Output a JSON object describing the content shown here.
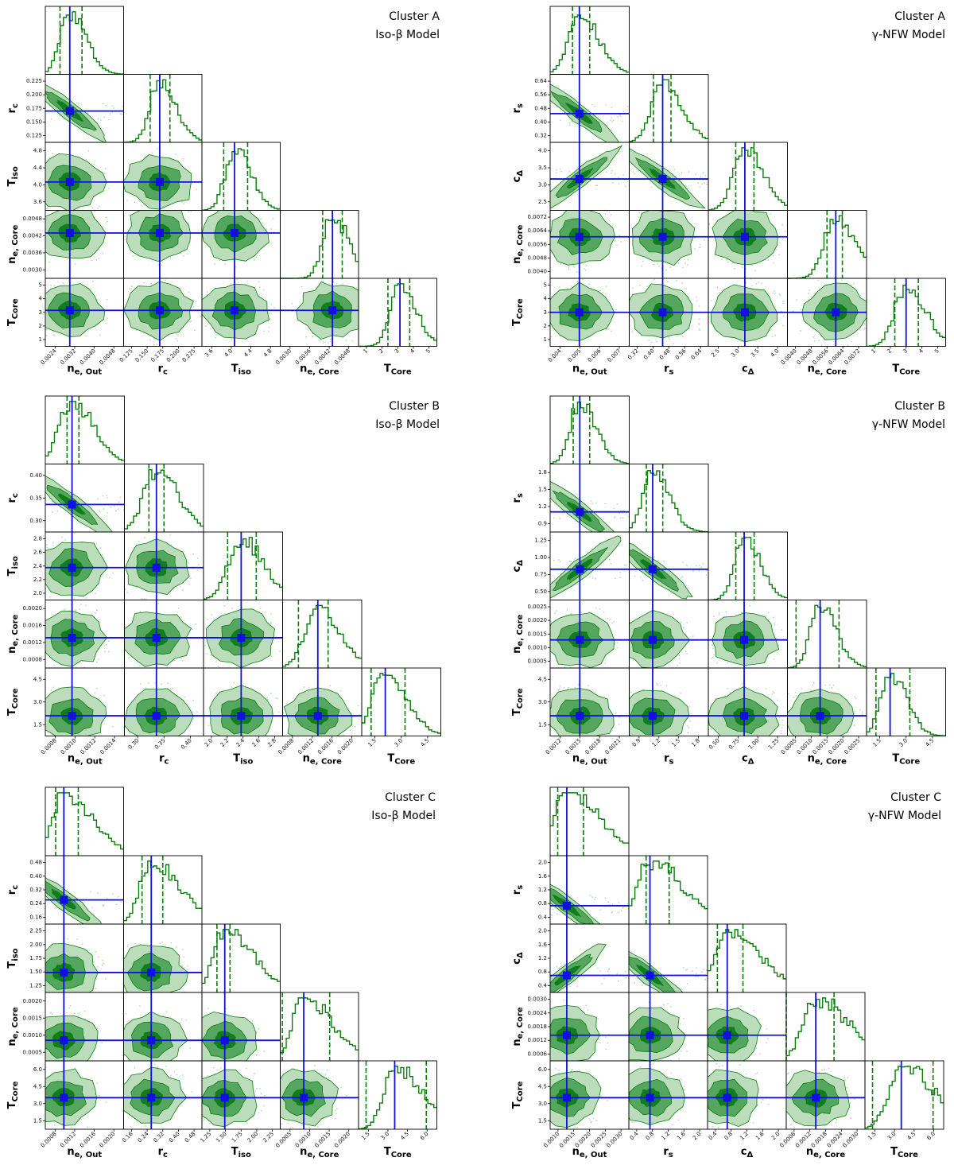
{
  "colors": {
    "main": "#0a7d0a",
    "fill_dark": "#0e7a1a",
    "fill_mid": "#4fa35a",
    "fill_light": "#b8dbb8",
    "truth": "#1010e0"
  },
  "chart_data": [
    {
      "type": "corner",
      "title": "Cluster A",
      "subtitle": "Iso-β Model",
      "params": [
        {
          "label": "n",
          "sub": "e, Out",
          "range": [
            0.002,
            0.0052
          ],
          "ticks": [
            "0.0024",
            "0.0032",
            "0.0040",
            "0.0048"
          ],
          "truth": 0.003,
          "q": [
            0.0026,
            0.0035
          ]
        },
        {
          "label": "r",
          "sub": "c",
          "range": [
            0.125,
            0.24
          ],
          "ticks": [
            "0.125",
            "0.150",
            "0.175",
            "0.200",
            "0.225"
          ],
          "truth": 0.178,
          "q": [
            0.164,
            0.193
          ]
        },
        {
          "label": "T",
          "sub": "iso",
          "range": [
            3.3,
            5.1
          ],
          "ticks": [
            "3.6",
            "4.0",
            "4.4",
            "4.8"
          ],
          "truth": 4.05,
          "q": [
            3.8,
            4.35
          ]
        },
        {
          "label": "n",
          "sub": "e, Core",
          "range": [
            0.0027,
            0.0051
          ],
          "ticks": [
            "0.0030",
            "0.0036",
            "0.0042",
            "0.0048"
          ],
          "truth": 0.0043,
          "q": [
            0.004,
            0.0046
          ]
        },
        {
          "label": "T",
          "sub": "Core",
          "range": [
            0.5,
            5.7
          ],
          "ticks": [
            "1",
            "2",
            "3",
            "4",
            "5"
          ],
          "truth": 3.25,
          "q": [
            2.45,
            3.9
          ]
        }
      ]
    },
    {
      "type": "corner",
      "title": "Cluster A",
      "subtitle": "γ-NFW Model",
      "params": [
        {
          "label": "n",
          "sub": "e, Out",
          "range": [
            0.003,
            0.0076
          ],
          "ticks": [
            "0.004",
            "0.005",
            "0.006",
            "0.007"
          ],
          "truth": 0.0047,
          "q": [
            0.0043,
            0.0053
          ]
        },
        {
          "label": "r",
          "sub": "s",
          "range": [
            0.3,
            0.66
          ],
          "ticks": [
            "0.32",
            "0.40",
            "0.48",
            "0.56",
            "0.64"
          ],
          "truth": 0.452,
          "q": [
            0.41,
            0.49
          ]
        },
        {
          "label": "c",
          "sub": "Δ",
          "range": [
            1.8,
            4.4
          ],
          "ticks": [
            "2.5",
            "3.0",
            "3.5",
            "4.0"
          ],
          "truth": 3.0,
          "q": [
            2.7,
            3.3
          ]
        },
        {
          "label": "n",
          "sub": "e, Core",
          "range": [
            0.0038,
            0.0074
          ],
          "ticks": [
            "0.0040",
            "0.0048",
            "0.0056",
            "0.0064",
            "0.0072"
          ],
          "truth": 0.006,
          "q": [
            0.0056,
            0.0063
          ]
        },
        {
          "label": "T",
          "sub": "Core",
          "range": [
            1.0,
            5.2
          ],
          "ticks": [
            "1",
            "2",
            "3",
            "4",
            "5"
          ],
          "truth": 3.1,
          "q": [
            2.5,
            3.75
          ]
        }
      ]
    },
    {
      "type": "corner",
      "title": "Cluster B",
      "subtitle": "Iso-β Model",
      "params": [
        {
          "label": "n",
          "sub": "e, Out",
          "range": [
            0.00075,
            0.00155
          ],
          "ticks": [
            "0.0008",
            "0.0010",
            "0.0012",
            "0.0014"
          ],
          "truth": 0.00102,
          "q": [
            0.00097,
            0.00109
          ]
        },
        {
          "label": "r",
          "sub": "c",
          "range": [
            0.25,
            0.46
          ],
          "ticks": [
            "0.30",
            "0.35",
            "0.40"
          ],
          "truth": 0.335,
          "q": [
            0.315,
            0.355
          ]
        },
        {
          "label": "T",
          "sub": "iso",
          "range": [
            1.8,
            2.85
          ],
          "ticks": [
            "2.0",
            "2.2",
            "2.4",
            "2.6",
            "2.8"
          ],
          "truth": 2.3,
          "q": [
            2.12,
            2.5
          ]
        },
        {
          "label": "n",
          "sub": "e, Core",
          "range": [
            0.0003,
            0.0023
          ],
          "ticks": [
            "0.0008",
            "0.0012",
            "0.0016",
            "0.0020"
          ],
          "truth": 0.00119,
          "q": [
            0.0007,
            0.00145
          ]
        },
        {
          "label": "T",
          "sub": "Core",
          "range": [
            1.0,
            5.2
          ],
          "ticks": [
            "1.5",
            "3.0",
            "4.5"
          ],
          "truth": 2.25,
          "q": [
            1.5,
            3.3
          ]
        }
      ]
    },
    {
      "type": "corner",
      "title": "Cluster B",
      "subtitle": "γ-NFW Model",
      "params": [
        {
          "label": "n",
          "sub": "e, Out",
          "range": [
            0.001,
            0.0022
          ],
          "ticks": [
            "0.0012",
            "0.0015",
            "0.0018",
            "0.0021"
          ],
          "truth": 0.00145,
          "q": [
            0.00135,
            0.0016
          ]
        },
        {
          "label": "r",
          "sub": "s",
          "range": [
            0.75,
            2.0
          ],
          "ticks": [
            "0.9",
            "1.2",
            "1.5",
            "1.8"
          ],
          "truth": 1.12,
          "q": [
            1.02,
            1.28
          ]
        },
        {
          "label": "c",
          "sub": "Δ",
          "range": [
            0.45,
            1.4
          ],
          "ticks": [
            "0.50",
            "0.75",
            "1.00",
            "1.25"
          ],
          "truth": 0.88,
          "q": [
            0.78,
            1.0
          ]
        },
        {
          "label": "n",
          "sub": "e, Core",
          "range": [
            0.0003,
            0.0026
          ],
          "ticks": [
            "0.0005",
            "0.0010",
            "0.0015",
            "0.0020",
            "0.0025"
          ],
          "truth": 0.00125,
          "q": [
            0.00055,
            0.0018
          ]
        },
        {
          "label": "T",
          "sub": "Core",
          "range": [
            1.0,
            5.2
          ],
          "ticks": [
            "1.5",
            "3.0",
            "4.5"
          ],
          "truth": 2.25,
          "q": [
            1.5,
            3.3
          ]
        }
      ]
    },
    {
      "type": "corner",
      "title": "Cluster C",
      "subtitle": "Iso-β Model",
      "params": [
        {
          "label": "n",
          "sub": "e, Out",
          "range": [
            0.0003,
            0.0022
          ],
          "ticks": [
            "0.0008",
            "0.0012",
            "0.0016",
            "0.0020"
          ],
          "truth": 0.00075,
          "q": [
            0.00055,
            0.0011
          ]
        },
        {
          "label": "r",
          "sub": "c",
          "range": [
            0.16,
            0.5
          ],
          "ticks": [
            "0.16",
            "0.24",
            "0.32",
            "0.40",
            "0.48"
          ],
          "truth": 0.28,
          "q": [
            0.24,
            0.33
          ]
        },
        {
          "label": "T",
          "sub": "iso",
          "range": [
            1.15,
            2.35
          ],
          "ticks": [
            "1.25",
            "1.50",
            "1.75",
            "2.00",
            "2.25"
          ],
          "truth": 1.5,
          "q": [
            1.38,
            1.58
          ]
        },
        {
          "label": "n",
          "sub": "e, Core",
          "range": [
            0.0004,
            0.0023
          ],
          "ticks": [
            "0.0005",
            "0.0010",
            "0.0015",
            "0.0020"
          ],
          "truth": 0.00097,
          "q": [
            0.00045,
            0.0016
          ]
        },
        {
          "label": "T",
          "sub": "Core",
          "range": [
            0.8,
            6.0
          ],
          "ticks": [
            "1.5",
            "3.0",
            "4.5",
            "6.0"
          ],
          "truth": 3.2,
          "q": [
            1.3,
            5.3
          ]
        }
      ]
    },
    {
      "type": "corner",
      "title": "Cluster C",
      "subtitle": "γ-NFW Model",
      "params": [
        {
          "label": "n",
          "sub": "e, Out",
          "range": [
            0.0007,
            0.0033
          ],
          "ticks": [
            "0.0010",
            "0.0015",
            "0.0020",
            "0.0025",
            "0.0030"
          ],
          "truth": 0.00125,
          "q": [
            0.00095,
            0.0018
          ]
        },
        {
          "label": "r",
          "sub": "s",
          "range": [
            0.25,
            2.3
          ],
          "ticks": [
            "0.4",
            "0.8",
            "1.2",
            "1.6",
            "2.0"
          ],
          "truth": 0.8,
          "q": [
            0.7,
            1.3
          ]
        },
        {
          "label": "c",
          "sub": "Δ",
          "range": [
            0.3,
            2.3
          ],
          "ticks": [
            "0.4",
            "0.8",
            "1.2",
            "1.6",
            "2.0"
          ],
          "truth": 0.8,
          "q": [
            0.55,
            1.2
          ]
        },
        {
          "label": "n",
          "sub": "e, Core",
          "range": [
            0.0004,
            0.0032
          ],
          "ticks": [
            "0.0006",
            "0.0012",
            "0.0018",
            "0.0024",
            "0.0030"
          ],
          "truth": 0.00145,
          "q": [
            0.0004,
            0.0021
          ]
        },
        {
          "label": "T",
          "sub": "Core",
          "range": [
            0.8,
            6.0
          ],
          "ticks": [
            "1.5",
            "3.0",
            "4.5",
            "6.0"
          ],
          "truth": 3.2,
          "q": [
            1.3,
            5.3
          ]
        }
      ]
    }
  ]
}
